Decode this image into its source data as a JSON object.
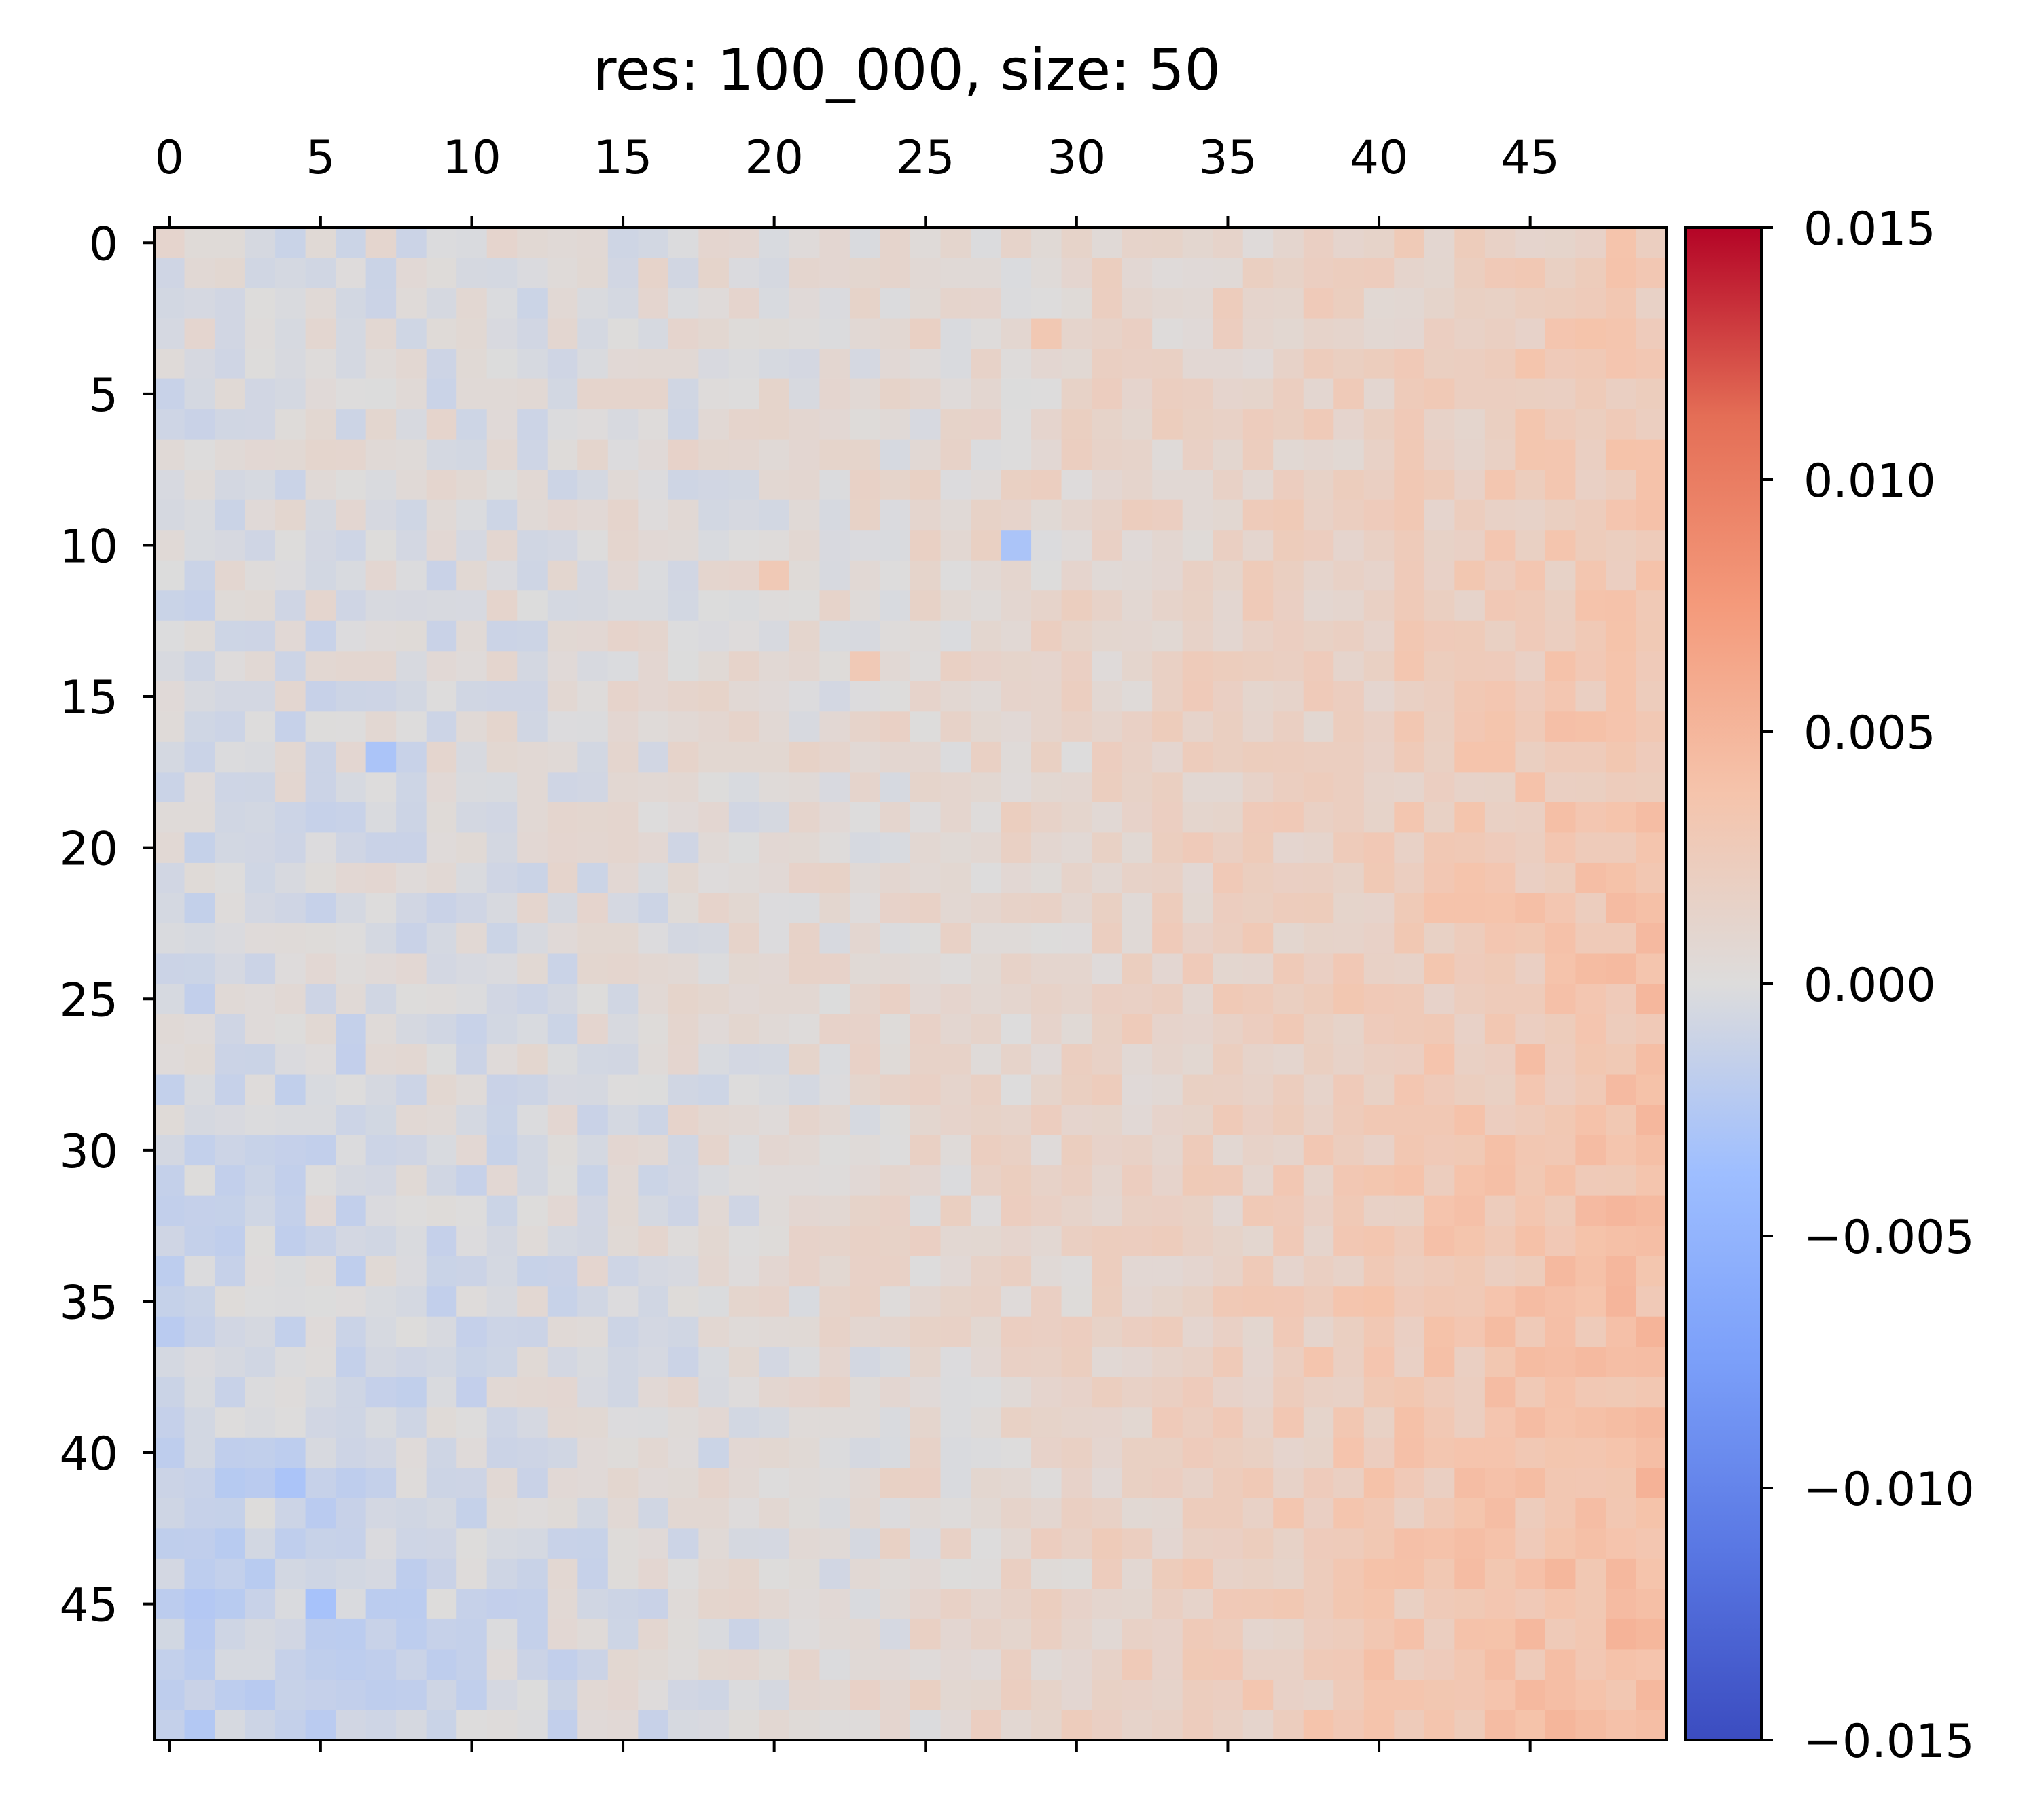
{
  "chart_data": {
    "type": "heatmap",
    "title": "res: 100_000, size: 50",
    "rows": 50,
    "cols": 50,
    "x_ticks": [
      0,
      5,
      10,
      15,
      20,
      25,
      30,
      35,
      40,
      45
    ],
    "y_ticks": [
      0,
      5,
      10,
      15,
      20,
      25,
      30,
      35,
      40,
      45
    ],
    "x_tick_position": "top",
    "colormap": "coolwarm",
    "colorbar": {
      "position": "right",
      "vmin": -0.015,
      "vmax": 0.015,
      "ticks": [
        0.015,
        0.01,
        0.005,
        0.0,
        -0.005,
        -0.01,
        -0.015
      ],
      "tick_labels": [
        "0.015",
        "0.010",
        "0.005",
        "0.000",
        "−0.005",
        "−0.010",
        "−0.015"
      ]
    },
    "value_model": {
      "description": "values near zero (about -0.004 to +0.005); slightly positive toward right columns and bottom-right corner, slightly negative toward lower-left",
      "base": 0.0,
      "right_gradient": 0.0028,
      "bottom_right_boost": 0.0018,
      "bottom_left_dip": -0.0016,
      "noise_amplitude": 0.0012,
      "seed": 100000
    },
    "highlights": [
      {
        "row": 49,
        "col": 47,
        "value": 0.0045
      },
      {
        "row": 48,
        "col": 47,
        "value": 0.0038
      },
      {
        "row": 3,
        "col": 29,
        "value": 0.0032
      },
      {
        "row": 11,
        "col": 20,
        "value": 0.003
      },
      {
        "row": 14,
        "col": 23,
        "value": 0.003
      },
      {
        "row": 17,
        "col": 7,
        "value": -0.003
      },
      {
        "row": 10,
        "col": 28,
        "value": -0.003
      },
      {
        "row": 45,
        "col": 5,
        "value": -0.0032
      },
      {
        "row": 41,
        "col": 4,
        "value": -0.003
      }
    ],
    "grid": false
  }
}
